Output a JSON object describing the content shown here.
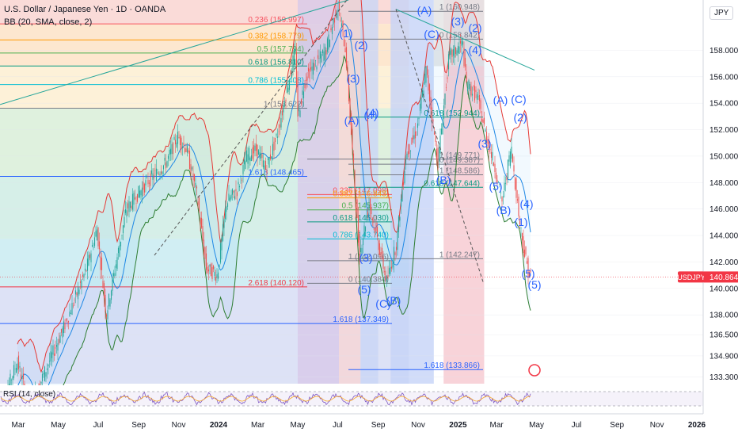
{
  "header": {
    "title": "U.S. Dollar / Japanese Yen · 1D · OANDA",
    "indicator": "BB (20, SMA, close, 2)",
    "currency": "JPY",
    "rsi_label": "RSI (14, close)"
  },
  "colors": {
    "candle_up": "#26a69a",
    "candle_down": "#ef5350",
    "bb_upper": "#e53935",
    "bb_basis": "#1e88e5",
    "bb_lower": "#2e7d32",
    "wave_label": "#2962ff",
    "last_price": "#f23645"
  },
  "chart_data": {
    "type": "candlestick",
    "symbol": "USDJPY",
    "last_price": 140.864,
    "last_price_label": "140.864",
    "symbol_badge": "USDJPY",
    "ylim": [
      132.8,
      161.8
    ],
    "y_ticks": [
      "158.000",
      "156.000",
      "154.000",
      "152.000",
      "150.000",
      "148.000",
      "146.000",
      "144.000",
      "142.000",
      "140.000",
      "138.000",
      "136.500",
      "134.900",
      "133.300"
    ],
    "x_ticks": [
      "Mar",
      "May",
      "Jul",
      "Sep",
      "Nov",
      "2024",
      "Mar",
      "May",
      "Jul",
      "Sep",
      "Nov",
      "2025",
      "Mar",
      "May",
      "Jul",
      "Sep",
      "Nov",
      "2026"
    ],
    "close_path": [
      [
        "2023-02-01",
        130.5
      ],
      [
        "2023-03-01",
        134.5
      ],
      [
        "2023-03-20",
        131.0
      ],
      [
        "2023-04-15",
        134.0
      ],
      [
        "2023-05-15",
        137.5
      ],
      [
        "2023-06-15",
        141.5
      ],
      [
        "2023-07-01",
        144.5
      ],
      [
        "2023-07-15",
        138.0
      ],
      [
        "2023-08-15",
        146.0
      ],
      [
        "2023-09-15",
        148.0
      ],
      [
        "2023-10-15",
        149.5
      ],
      [
        "2023-11-01",
        151.5
      ],
      [
        "2023-11-15",
        150.5
      ],
      [
        "2023-12-01",
        147.0
      ],
      [
        "2023-12-15",
        141.5
      ],
      [
        "2024-01-01",
        141.0
      ],
      [
        "2024-01-15",
        146.5
      ],
      [
        "2024-02-01",
        147.5
      ],
      [
        "2024-02-15",
        150.0
      ],
      [
        "2024-03-01",
        150.5
      ],
      [
        "2024-03-15",
        149.0
      ],
      [
        "2024-04-01",
        151.5
      ],
      [
        "2024-04-29",
        158.0
      ],
      [
        "2024-05-03",
        153.0
      ],
      [
        "2024-05-15",
        156.0
      ],
      [
        "2024-06-15",
        158.0
      ],
      [
        "2024-07-03",
        161.5
      ],
      [
        "2024-07-15",
        158.0
      ],
      [
        "2024-08-05",
        142.5
      ],
      [
        "2024-08-20",
        146.5
      ],
      [
        "2024-09-16",
        140.5
      ],
      [
        "2024-10-01",
        143.5
      ],
      [
        "2024-10-15",
        150.0
      ],
      [
        "2024-11-01",
        152.0
      ],
      [
        "2024-11-15",
        156.5
      ],
      [
        "2024-12-03",
        149.5
      ],
      [
        "2024-12-20",
        157.5
      ],
      [
        "2025-01-10",
        158.5
      ],
      [
        "2025-01-15",
        155.5
      ],
      [
        "2025-02-01",
        154.5
      ],
      [
        "2025-02-15",
        151.5
      ],
      [
        "2025-03-01",
        149.0
      ],
      [
        "2025-03-11",
        146.5
      ],
      [
        "2025-03-25",
        150.7
      ],
      [
        "2025-04-07",
        145.0
      ],
      [
        "2025-04-15",
        142.5
      ],
      [
        "2025-04-22",
        140.9
      ]
    ],
    "fib_levels": [
      {
        "label": "0.236 (159.997)",
        "price": 159.997,
        "color": "#f7525f"
      },
      {
        "label": "0.382 (158.779)",
        "price": 158.779,
        "color": "#ff9800"
      },
      {
        "label": "0.5 (157.794)",
        "price": 157.794,
        "color": "#4caf50"
      },
      {
        "label": "0.618 (156.810)",
        "price": 156.81,
        "color": "#089981"
      },
      {
        "label": "0.786 (155.408)",
        "price": 155.408,
        "color": "#00bcd4"
      },
      {
        "label": "1 (153.622)",
        "price": 153.622,
        "color": "#787b86"
      },
      {
        "label": "1.618 (148.465)",
        "price": 148.465,
        "color": "#2962ff"
      },
      {
        "label": "2.618 (140.120)",
        "price": 140.12,
        "color": "#f23645"
      },
      {
        "label": "0.236 (147.098)",
        "price": 147.098,
        "color": "#f7525f"
      },
      {
        "label": "0.382 (146.843)",
        "price": 146.843,
        "color": "#ff9800"
      },
      {
        "label": "0.5 (145.937)",
        "price": 145.937,
        "color": "#4caf50"
      },
      {
        "label": "0.618 (145.030)",
        "price": 145.03,
        "color": "#089981"
      },
      {
        "label": "0.786 (143.740)",
        "price": 143.74,
        "color": "#00bcd4"
      },
      {
        "label": "1 (142.096)",
        "price": 142.096,
        "color": "#787b86"
      },
      {
        "label": "0 (140.384)",
        "price": 140.384,
        "color": "#787b86"
      },
      {
        "label": "1.618 (137.349)",
        "price": 137.349,
        "color": "#2962ff"
      },
      {
        "label": "1 (160.948)",
        "price": 160.948,
        "color": "#787b86"
      },
      {
        "label": "0 (158.842)",
        "price": 158.842,
        "color": "#787b86"
      },
      {
        "label": "0.618 (152.944)",
        "price": 152.944,
        "color": "#089981"
      },
      {
        "label": "1 (149.771)",
        "price": 149.771,
        "color": "#787b86"
      },
      {
        "label": "0 (149.387)",
        "price": 149.387,
        "color": "#787b86"
      },
      {
        "label": "1 (148.586)",
        "price": 148.586,
        "color": "#787b86"
      },
      {
        "label": "0.618 (147.644)",
        "price": 147.644,
        "color": "#089981"
      },
      {
        "label": "1 (142.247)",
        "price": 142.247,
        "color": "#787b86"
      },
      {
        "label": "1.618 (133.866)",
        "price": 133.866,
        "color": "#2962ff"
      }
    ],
    "wave_labels": [
      "(1)",
      "(2)",
      "(3)",
      "(4)",
      "(5)",
      "(A)",
      "(B)",
      "(C)",
      "(3)",
      "(4)",
      "(5)",
      "(A)",
      "(B)",
      "(C)",
      "(3)",
      "(4)",
      "(5)",
      "(2)",
      "(1)",
      "(A)",
      "(C)",
      "(2)",
      "(B)",
      "(3)",
      "(4)",
      "(5)"
    ]
  }
}
